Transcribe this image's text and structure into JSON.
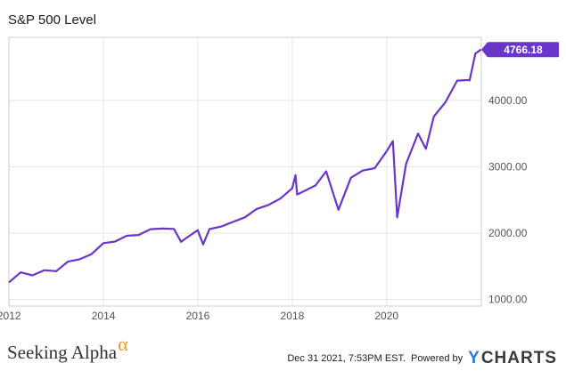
{
  "chart_data": {
    "type": "line",
    "title": "S&P 500 Level",
    "series": [
      {
        "color": "#6a35c9",
        "x": [
          "2011-12-31",
          "2012-03-31",
          "2012-06-30",
          "2012-09-30",
          "2012-12-31",
          "2013-03-31",
          "2013-06-30",
          "2013-09-30",
          "2013-12-31",
          "2014-03-31",
          "2014-06-30",
          "2014-09-30",
          "2014-12-31",
          "2015-03-31",
          "2015-06-30",
          "2015-08-25",
          "2015-09-30",
          "2015-12-31",
          "2016-02-11",
          "2016-03-31",
          "2016-06-30",
          "2016-09-30",
          "2016-12-31",
          "2017-03-31",
          "2017-06-30",
          "2017-09-30",
          "2017-12-31",
          "2018-01-26",
          "2018-02-08",
          "2018-06-30",
          "2018-09-20",
          "2018-12-24",
          "2019-03-31",
          "2019-06-30",
          "2019-09-30",
          "2019-12-31",
          "2020-02-19",
          "2020-03-23",
          "2020-05-31",
          "2020-08-31",
          "2020-10-31",
          "2020-12-31",
          "2021-03-31",
          "2021-06-30",
          "2021-09-30",
          "2021-10-04",
          "2021-11-18",
          "2021-12-31"
        ],
        "y": [
          1257,
          1408,
          1362,
          1440,
          1426,
          1569,
          1606,
          1682,
          1848,
          1872,
          1960,
          1972,
          2059,
          2068,
          2063,
          1868,
          1920,
          2044,
          1829,
          2060,
          2099,
          2168,
          2239,
          2363,
          2423,
          2519,
          2674,
          2873,
          2581,
          2718,
          2930,
          2351,
          2834,
          2942,
          2977,
          3231,
          3386,
          2237,
          3044,
          3500,
          3270,
          3756,
          3973,
          4298,
          4308,
          4300,
          4705,
          4766.18
        ]
      }
    ],
    "xticks": [
      "2012",
      "2014",
      "2016",
      "2018",
      "2020"
    ],
    "yticks": [
      "1000.00",
      "2000.00",
      "3000.00",
      "4000.00"
    ],
    "ylim": [
      900,
      4950
    ],
    "last_value_label": "4766.18",
    "grid": true
  },
  "footer": {
    "brand": "Seeking Alpha",
    "brand_symbol": "α",
    "timestamp": "Dec 31 2021, 7:53PM EST.",
    "powered_by": "Powered by",
    "provider_symbol": "Y",
    "provider": "CHARTS"
  }
}
